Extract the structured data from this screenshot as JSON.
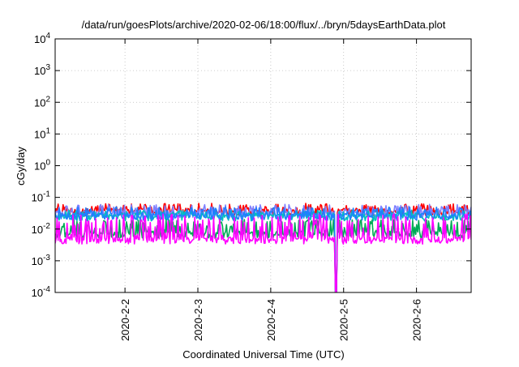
{
  "chart_data": {
    "type": "line",
    "title": "/data/run/goesPlots/archive/2020-02-06/18:00/flux/../bryn/5daysEarthData.plot",
    "xlabel": "Coordinated Universal Time (UTC)",
    "ylabel": "cGy/day",
    "y_scale": "log",
    "ylim": [
      0.0001,
      10000
    ],
    "xlim": [
      "2020-02-01 01:00",
      "2020-02-06 18:00"
    ],
    "grid": true,
    "y_ticks": [
      {
        "value": 0.0001,
        "base": "10",
        "exp": "-4"
      },
      {
        "value": 0.001,
        "base": "10",
        "exp": "-3"
      },
      {
        "value": 0.01,
        "base": "10",
        "exp": "-2"
      },
      {
        "value": 0.1,
        "base": "10",
        "exp": "-1"
      },
      {
        "value": 1,
        "base": "10",
        "exp": "0"
      },
      {
        "value": 10,
        "base": "10",
        "exp": "1"
      },
      {
        "value": 100,
        "base": "10",
        "exp": "2"
      },
      {
        "value": 1000,
        "base": "10",
        "exp": "3"
      },
      {
        "value": 10000,
        "base": "10",
        "exp": "4"
      }
    ],
    "x_ticks": [
      "2020-2-2",
      "2020-2-3",
      "2020-2-4",
      "2020-2-5",
      "2020-2-6"
    ],
    "x_tick_dates": [
      "2020-02-02 00:00",
      "2020-02-03 00:00",
      "2020-02-04 00:00",
      "2020-02-05 00:00",
      "2020-02-06 00:00"
    ],
    "series": [
      {
        "color": "#ff0000",
        "base_value": 0.035,
        "spike_max": 0.065
      },
      {
        "color": "#7f7fff",
        "base_value": 0.03,
        "spike_max": 0.06
      },
      {
        "color": "#00bfbf",
        "base_value": 0.024,
        "spike_max": 0.04
      },
      {
        "color": "#00aa55",
        "base_value": 0.007,
        "spike_max": 0.02
      },
      {
        "color": "#1f7fff",
        "base_value": 0.025,
        "spike_max": 0.05
      },
      {
        "color": "#ff00ff",
        "base_value": 0.0045,
        "spike_max": 0.03
      }
    ],
    "dropout": {
      "date": "2020-02-04 21:30",
      "min_value": 0.0001
    }
  }
}
